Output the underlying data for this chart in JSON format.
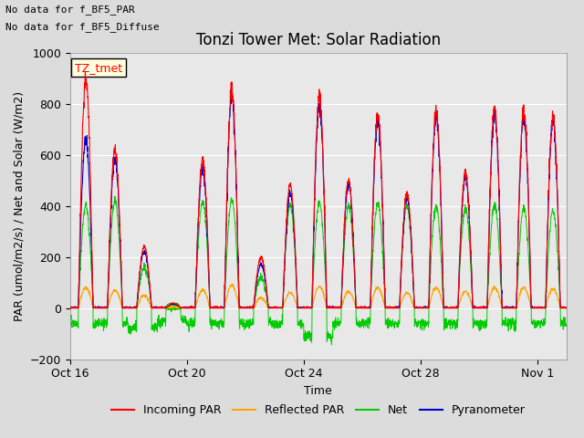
{
  "title": "Tonzi Tower Met: Solar Radiation",
  "ylabel": "PAR (umol/m2/s) / Net and Solar (W/m2)",
  "xlabel": "Time",
  "ylim": [
    -200,
    1000
  ],
  "yticks": [
    -200,
    0,
    200,
    400,
    600,
    800,
    1000
  ],
  "text_lines": [
    "No data for f_BF5_PAR",
    "No data for f_BF5_Diffuse"
  ],
  "legend_label_box": "TZ_tmet",
  "legend_entries": [
    {
      "label": "Incoming PAR",
      "color": "#ff0000"
    },
    {
      "label": "Reflected PAR",
      "color": "#ffa500"
    },
    {
      "label": "Net",
      "color": "#00cc00"
    },
    {
      "label": "Pyranometer",
      "color": "#0000cc"
    }
  ],
  "x_tick_labels": [
    "Oct 16",
    "Oct 20",
    "Oct 24",
    "Oct 28",
    "Nov 1"
  ],
  "x_tick_positions": [
    0,
    4,
    8,
    12,
    16
  ],
  "num_days": 17,
  "plot_bg_color": "#e8e8e8",
  "fig_bg_color": "#dcdcdc",
  "title_fontsize": 12,
  "axis_label_fontsize": 9,
  "tick_fontsize": 9
}
